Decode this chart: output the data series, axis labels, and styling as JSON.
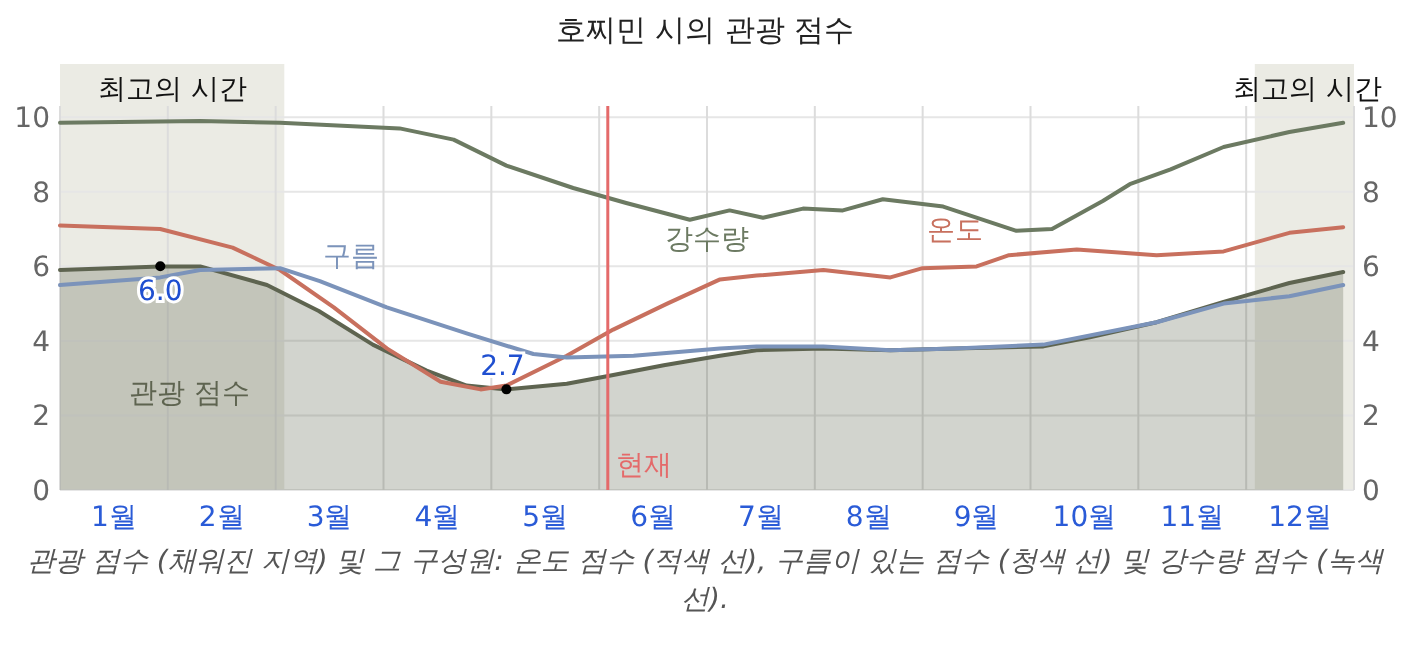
{
  "chart_data": {
    "type": "line",
    "title": "호찌민 시의 관광 점수",
    "xlim": [
      0,
      12
    ],
    "xticks": [
      {
        "value": 0,
        "label": null
      },
      {
        "value": 0.5,
        "label": "1월"
      },
      {
        "value": 1,
        "label": null
      },
      {
        "value": 1.5,
        "label": "2월"
      },
      {
        "value": 2,
        "label": null
      },
      {
        "value": 2.5,
        "label": "3월"
      },
      {
        "value": 3,
        "label": null
      },
      {
        "value": 3.5,
        "label": "4월"
      },
      {
        "value": 4,
        "label": null
      },
      {
        "value": 4.5,
        "label": "5월"
      },
      {
        "value": 5,
        "label": null
      },
      {
        "value": 5.5,
        "label": "6월"
      },
      {
        "value": 6,
        "label": null
      },
      {
        "value": 6.5,
        "label": "7월"
      },
      {
        "value": 7,
        "label": null
      },
      {
        "value": 7.5,
        "label": "8월"
      },
      {
        "value": 8,
        "label": null
      },
      {
        "value": 8.5,
        "label": "9월"
      },
      {
        "value": 9,
        "label": null
      },
      {
        "value": 9.5,
        "label": "10월"
      },
      {
        "value": 10,
        "label": null
      },
      {
        "value": 10.5,
        "label": "11월"
      },
      {
        "value": 11,
        "label": null
      },
      {
        "value": 11.5,
        "label": "12월"
      },
      {
        "value": 12,
        "label": null
      }
    ],
    "ylim": [
      0,
      10.3
    ],
    "yticks": [
      0,
      2,
      4,
      6,
      8,
      10
    ],
    "y2lim": [
      0,
      10.3
    ],
    "y2ticks": [
      0,
      2,
      4,
      6,
      8,
      10
    ],
    "grid": true,
    "series": [
      {
        "name": "관광 점수",
        "type": "area",
        "color": "#5e6450",
        "x": [
          0,
          0.93,
          1.3,
          1.92,
          2.4,
          2.9,
          3.4,
          3.77,
          4.14,
          4.7,
          5.07,
          5.6,
          6.12,
          6.46,
          7.08,
          7.7,
          8.3,
          9.12,
          9.55,
          10.17,
          10.79,
          11.4,
          11.9
        ],
        "values": [
          5.9,
          6.0,
          6.0,
          5.5,
          4.8,
          3.9,
          3.2,
          2.8,
          2.7,
          2.85,
          3.05,
          3.35,
          3.6,
          3.75,
          3.8,
          3.75,
          3.8,
          3.85,
          4.1,
          4.5,
          5.05,
          5.55,
          5.85
        ]
      },
      {
        "name": "온도",
        "color": "#c8705e",
        "x": [
          0,
          0.93,
          1.6,
          2.04,
          2.54,
          3.03,
          3.53,
          3.9,
          4.14,
          4.7,
          5.13,
          5.63,
          6.12,
          6.46,
          7.08,
          7.7,
          8.0,
          8.5,
          8.8,
          9.43,
          10.17,
          10.79,
          11.4,
          11.9
        ],
        "values": [
          7.1,
          7.0,
          6.5,
          5.9,
          4.9,
          3.8,
          2.9,
          2.7,
          2.8,
          3.6,
          4.3,
          5.0,
          5.65,
          5.75,
          5.9,
          5.7,
          5.95,
          6.0,
          6.3,
          6.45,
          6.3,
          6.4,
          6.9,
          7.05
        ]
      },
      {
        "name": "구름",
        "color": "#7b93ba",
        "x": [
          0,
          0.93,
          1.3,
          2.04,
          2.41,
          3.03,
          3.77,
          4.39,
          4.7,
          5.32,
          6.12,
          6.46,
          7.08,
          7.7,
          8.3,
          9.12,
          10.17,
          10.79,
          11.4,
          11.9
        ],
        "values": [
          5.5,
          5.7,
          5.9,
          5.95,
          5.6,
          4.9,
          4.2,
          3.65,
          3.55,
          3.6,
          3.8,
          3.85,
          3.85,
          3.75,
          3.8,
          3.9,
          4.5,
          5.0,
          5.2,
          5.5
        ]
      },
      {
        "name": "강수량",
        "color": "#6c7a62",
        "x": [
          0,
          1.3,
          2.04,
          3.15,
          3.65,
          4.14,
          4.76,
          5.25,
          5.84,
          6.21,
          6.52,
          6.89,
          7.26,
          7.63,
          8.19,
          8.87,
          9.2,
          9.67,
          9.92,
          10.3,
          10.79,
          11.4,
          11.9
        ],
        "values": [
          9.85,
          9.9,
          9.85,
          9.7,
          9.4,
          8.7,
          8.1,
          7.7,
          7.25,
          7.5,
          7.3,
          7.55,
          7.5,
          7.8,
          7.6,
          6.95,
          7.0,
          7.75,
          8.2,
          8.6,
          9.2,
          9.6,
          9.85
        ]
      }
    ],
    "bands": [
      {
        "axis": "x",
        "from": 0,
        "to": 2.08,
        "label": "최고의 시간",
        "color": "#ebebe4"
      },
      {
        "axis": "x",
        "from": 11.08,
        "to": 12,
        "label": "최고의 시간",
        "color": "#ebebe4"
      }
    ],
    "ref_lines": [
      {
        "axis": "x",
        "value": 5.08,
        "label": "현재",
        "color": "#e46a6a"
      }
    ],
    "annotations": [
      {
        "text": "6.0",
        "x": 0.93,
        "y": 6.0
      },
      {
        "text": "2.7",
        "x": 4.14,
        "y": 2.7
      },
      "관광 점수 (채워진 지역) 및 그 구성원: 온도 점수 (적색 선), 구름이 있는 점수 (청색 선) 및 강수량 점수 (녹색 선)."
    ]
  }
}
